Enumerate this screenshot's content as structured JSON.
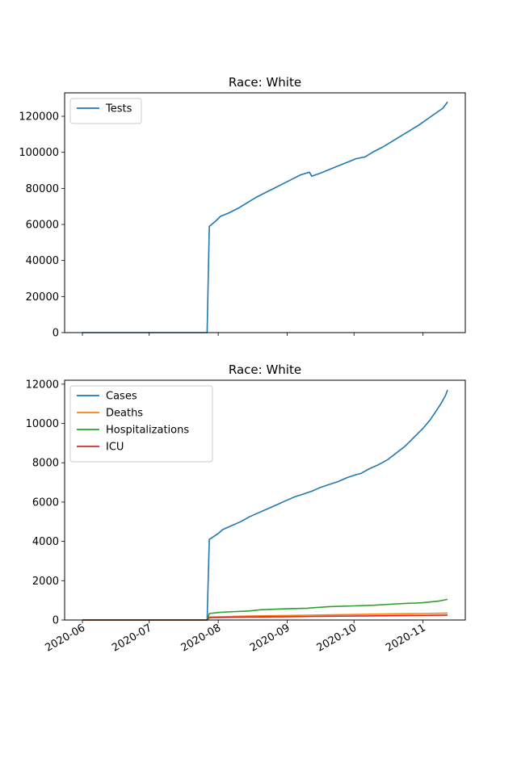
{
  "chart_data": [
    {
      "type": "line",
      "title": "Race: White",
      "xlabel": "",
      "ylabel": "",
      "x_range": [
        "2020-05-24",
        "2020-11-20"
      ],
      "ylim": [
        0,
        133000
      ],
      "yticks": [
        0,
        20000,
        40000,
        60000,
        80000,
        100000,
        120000
      ],
      "xticks": [
        "2020-06",
        "2020-07",
        "2020-08",
        "2020-09",
        "2020-10",
        "2020-11"
      ],
      "show_xtick_labels": false,
      "legend_position": "upper left",
      "series": [
        {
          "name": "Tests",
          "color": "#1f77b4",
          "points": [
            [
              "2020-06-01",
              0
            ],
            [
              "2020-07-27",
              0
            ],
            [
              "2020-07-28",
              58900
            ],
            [
              "2020-07-31",
              62000
            ],
            [
              "2020-08-02",
              64500
            ],
            [
              "2020-08-06",
              66500
            ],
            [
              "2020-08-10",
              69000
            ],
            [
              "2020-08-14",
              72000
            ],
            [
              "2020-08-18",
              75000
            ],
            [
              "2020-08-22",
              77500
            ],
            [
              "2020-08-26",
              80000
            ],
            [
              "2020-08-30",
              82500
            ],
            [
              "2020-09-03",
              85000
            ],
            [
              "2020-09-07",
              87500
            ],
            [
              "2020-09-11",
              89000
            ],
            [
              "2020-09-12",
              86800
            ],
            [
              "2020-09-16",
              88500
            ],
            [
              "2020-09-20",
              90500
            ],
            [
              "2020-09-24",
              92500
            ],
            [
              "2020-09-28",
              94500
            ],
            [
              "2020-10-02",
              96500
            ],
            [
              "2020-10-06",
              97500
            ],
            [
              "2020-10-10",
              100500
            ],
            [
              "2020-10-14",
              103000
            ],
            [
              "2020-10-18",
              106000
            ],
            [
              "2020-10-22",
              109000
            ],
            [
              "2020-10-26",
              112000
            ],
            [
              "2020-10-30",
              115000
            ],
            [
              "2020-11-03",
              118500
            ],
            [
              "2020-11-07",
              122000
            ],
            [
              "2020-11-10",
              124500
            ],
            [
              "2020-11-12",
              128000
            ]
          ]
        }
      ]
    },
    {
      "type": "line",
      "title": "Race: White",
      "xlabel": "",
      "ylabel": "",
      "x_range": [
        "2020-05-24",
        "2020-11-20"
      ],
      "ylim": [
        0,
        12200
      ],
      "yticks": [
        0,
        2000,
        4000,
        6000,
        8000,
        10000,
        12000
      ],
      "xticks": [
        "2020-06",
        "2020-07",
        "2020-08",
        "2020-09",
        "2020-10",
        "2020-11"
      ],
      "show_xtick_labels": true,
      "legend_position": "upper left",
      "series": [
        {
          "name": "Cases",
          "color": "#1f77b4",
          "points": [
            [
              "2020-06-01",
              0
            ],
            [
              "2020-07-27",
              0
            ],
            [
              "2020-07-28",
              4100
            ],
            [
              "2020-08-01",
              4400
            ],
            [
              "2020-08-03",
              4600
            ],
            [
              "2020-08-07",
              4800
            ],
            [
              "2020-08-11",
              5000
            ],
            [
              "2020-08-15",
              5250
            ],
            [
              "2020-08-19",
              5450
            ],
            [
              "2020-08-23",
              5650
            ],
            [
              "2020-08-27",
              5850
            ],
            [
              "2020-08-31",
              6050
            ],
            [
              "2020-09-04",
              6250
            ],
            [
              "2020-09-08",
              6400
            ],
            [
              "2020-09-12",
              6550
            ],
            [
              "2020-09-16",
              6750
            ],
            [
              "2020-09-20",
              6900
            ],
            [
              "2020-09-24",
              7050
            ],
            [
              "2020-09-28",
              7250
            ],
            [
              "2020-10-02",
              7400
            ],
            [
              "2020-10-04",
              7450
            ],
            [
              "2020-10-08",
              7700
            ],
            [
              "2020-10-12",
              7900
            ],
            [
              "2020-10-16",
              8150
            ],
            [
              "2020-10-20",
              8500
            ],
            [
              "2020-10-24",
              8850
            ],
            [
              "2020-10-28",
              9300
            ],
            [
              "2020-11-01",
              9750
            ],
            [
              "2020-11-04",
              10150
            ],
            [
              "2020-11-07",
              10650
            ],
            [
              "2020-11-09",
              11000
            ],
            [
              "2020-11-11",
              11400
            ],
            [
              "2020-11-12",
              11700
            ]
          ]
        },
        {
          "name": "Deaths",
          "color": "#ff7f0e",
          "points": [
            [
              "2020-06-01",
              0
            ],
            [
              "2020-07-27",
              0
            ],
            [
              "2020-07-28",
              150
            ],
            [
              "2020-08-15",
              200
            ],
            [
              "2020-09-01",
              230
            ],
            [
              "2020-09-15",
              255
            ],
            [
              "2020-10-01",
              280
            ],
            [
              "2020-10-15",
              305
            ],
            [
              "2020-11-01",
              330
            ],
            [
              "2020-11-12",
              355
            ]
          ]
        },
        {
          "name": "Hospitalizations",
          "color": "#2ca02c",
          "points": [
            [
              "2020-06-01",
              0
            ],
            [
              "2020-07-27",
              0
            ],
            [
              "2020-07-28",
              330
            ],
            [
              "2020-08-01",
              380
            ],
            [
              "2020-08-05",
              410
            ],
            [
              "2020-08-15",
              460
            ],
            [
              "2020-08-20",
              520
            ],
            [
              "2020-09-01",
              570
            ],
            [
              "2020-09-10",
              600
            ],
            [
              "2020-09-20",
              680
            ],
            [
              "2020-10-01",
              720
            ],
            [
              "2020-10-10",
              750
            ],
            [
              "2020-10-20",
              820
            ],
            [
              "2020-11-01",
              880
            ],
            [
              "2020-11-08",
              960
            ],
            [
              "2020-11-12",
              1050
            ]
          ]
        },
        {
          "name": "ICU",
          "color": "#d62728",
          "points": [
            [
              "2020-06-01",
              0
            ],
            [
              "2020-07-27",
              0
            ],
            [
              "2020-07-28",
              120
            ],
            [
              "2020-08-15",
              150
            ],
            [
              "2020-09-01",
              170
            ],
            [
              "2020-09-15",
              185
            ],
            [
              "2020-10-01",
              200
            ],
            [
              "2020-10-15",
              215
            ],
            [
              "2020-11-01",
              235
            ],
            [
              "2020-11-12",
              250
            ]
          ]
        }
      ]
    }
  ]
}
